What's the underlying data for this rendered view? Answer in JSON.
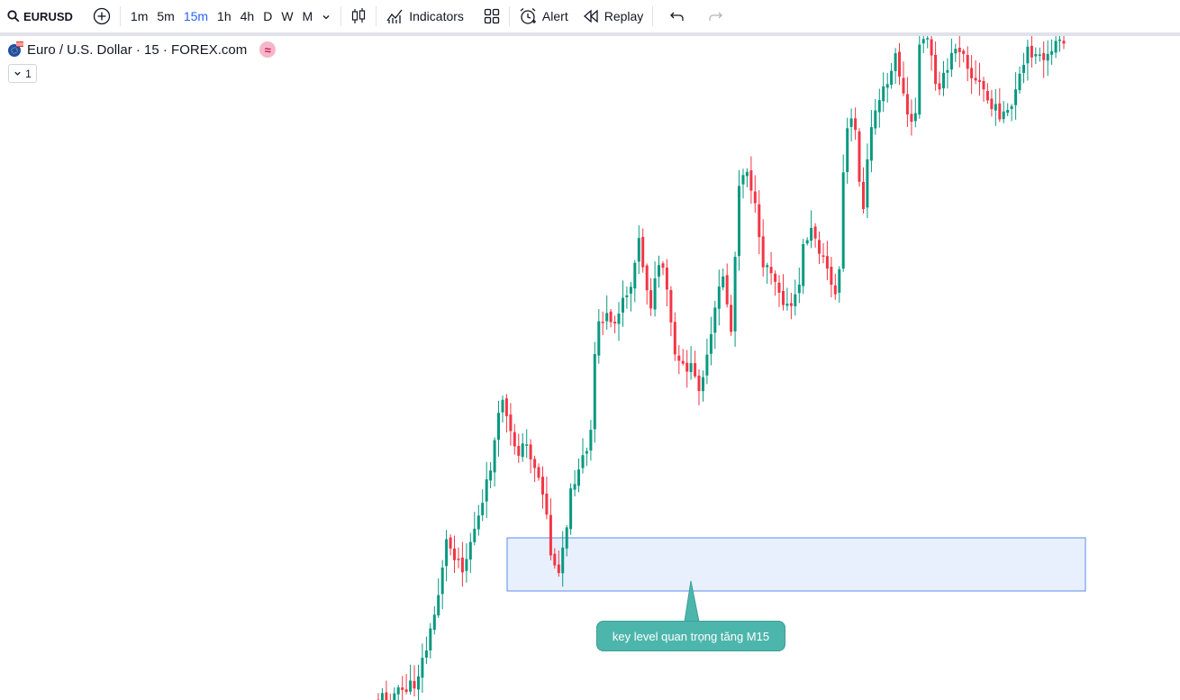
{
  "toolbar": {
    "symbol": "EURUSD",
    "intervals": [
      "1m",
      "5m",
      "15m",
      "1h",
      "4h",
      "D",
      "W",
      "M"
    ],
    "active_interval": "15m",
    "indicators_label": "Indicators",
    "alert_label": "Alert",
    "replay_label": "Replay"
  },
  "legend": {
    "title": "Euro / U.S. Dollar · 15 · FOREX.com",
    "badge": "≈",
    "collapse_count": "1"
  },
  "annotation": {
    "callout_text": "key level quan trọng tăng M15"
  },
  "colors": {
    "up": "#089981",
    "down": "#f23645",
    "zone_fill": "#e8f0fe",
    "zone_border": "#5b8de8",
    "callout_bg": "#4db6ac"
  }
}
